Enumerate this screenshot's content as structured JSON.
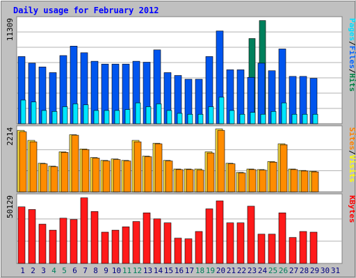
{
  "chart_data": {
    "type": "bar",
    "title": "Daily usage for February 2012",
    "x": [
      "1",
      "2",
      "3",
      "4",
      "5",
      "6",
      "7",
      "8",
      "9",
      "10",
      "11",
      "12",
      "13",
      "14",
      "15",
      "16",
      "17",
      "18",
      "19",
      "20",
      "21",
      "22",
      "23",
      "24",
      "25",
      "26",
      "27",
      "28",
      "29",
      "30",
      "31"
    ],
    "weekend_days": [
      4,
      5,
      11,
      12,
      18,
      19,
      25,
      26
    ],
    "panels": [
      {
        "id": "hits",
        "max_label": "11309",
        "ymax": 11309,
        "side_label": [
          "Pages",
          "Files",
          "Hits"
        ],
        "side_colors": [
          "#00e0ff",
          "#0060ff",
          "#008040"
        ],
        "series": [
          {
            "name": "Hits",
            "color": "#00805c",
            "values": [
              0,
              0,
              0,
              0,
              0,
              0,
              0,
              0,
              0,
              0,
              0,
              0,
              0,
              0,
              0,
              0,
              0,
              0,
              0,
              0,
              0,
              0,
              9000,
              10900,
              0,
              0,
              0,
              0,
              0,
              0,
              0
            ]
          },
          {
            "name": "Files",
            "color": "#0055ee",
            "values": [
              7100,
              6400,
              6000,
              5400,
              7200,
              8200,
              7500,
              6600,
              6300,
              6300,
              6300,
              6600,
              6500,
              7800,
              5400,
              5100,
              4700,
              4700,
              7100,
              9800,
              5700,
              5700,
              4900,
              6400,
              5600,
              7900,
              5000,
              5000,
              4800,
              0,
              0
            ]
          },
          {
            "name": "Pages",
            "color": "#00e6ff",
            "values": [
              2500,
              2300,
              1400,
              1300,
              1800,
              2100,
              2000,
              1400,
              1400,
              1400,
              1500,
              2200,
              1800,
              2100,
              1400,
              1100,
              1000,
              1000,
              1800,
              2800,
              1400,
              1000,
              1200,
              1000,
              1300,
              2200,
              1000,
              1000,
              1000,
              0,
              0
            ]
          }
        ]
      },
      {
        "id": "visits",
        "max_label": "2214",
        "ymax": 2214,
        "side_label": [
          "Sites",
          "Visits"
        ],
        "side_colors": [
          "#ff8000",
          "#ffff00"
        ],
        "series": [
          {
            "name": "Visits",
            "color": "#ffe040",
            "values": [
              2150,
              1800,
              1000,
              900,
              1400,
              2000,
              1500,
              1200,
              1100,
              1150,
              1100,
              1800,
              1250,
              1700,
              1100,
              800,
              800,
              800,
              1400,
              2200,
              1000,
              680,
              800,
              780,
              1060,
              1680,
              800,
              750,
              720,
              0,
              0
            ]
          },
          {
            "name": "Sites",
            "color": "#ff8c00",
            "values": [
              2100,
              1750,
              980,
              880,
              1380,
              1980,
              1480,
              1180,
              1080,
              1130,
              1080,
              1750,
              1230,
              1680,
              1080,
              780,
              780,
              760,
              1360,
              2150,
              980,
              660,
              780,
              760,
              1040,
              1650,
              780,
              730,
              700,
              0,
              0
            ]
          }
        ]
      },
      {
        "id": "kbytes",
        "max_label": "50129",
        "ymax": 50129,
        "side_label": [
          "KBytes"
        ],
        "side_colors": [
          "#ff0000"
        ],
        "series": [
          {
            "name": "KBytes",
            "color": "#ff1a1a",
            "values": [
              42500,
              40500,
              29500,
              25000,
              34000,
              33000,
              49300,
              39000,
              23500,
              25000,
              27500,
              31500,
              38000,
              33500,
              30500,
              19000,
              18500,
              24000,
              41000,
              47000,
              30500,
              30500,
              43000,
              22000,
              22000,
              38000,
              19500,
              24000,
              23500,
              0,
              0
            ]
          }
        ]
      }
    ]
  },
  "colors": {
    "frame_bg": "#c0c0c0",
    "plot_bg": "#ffffff",
    "grid": "#b0b0b0",
    "title": "#0000ff",
    "weekday_label": "#000080",
    "weekend_label": "#00805c"
  }
}
